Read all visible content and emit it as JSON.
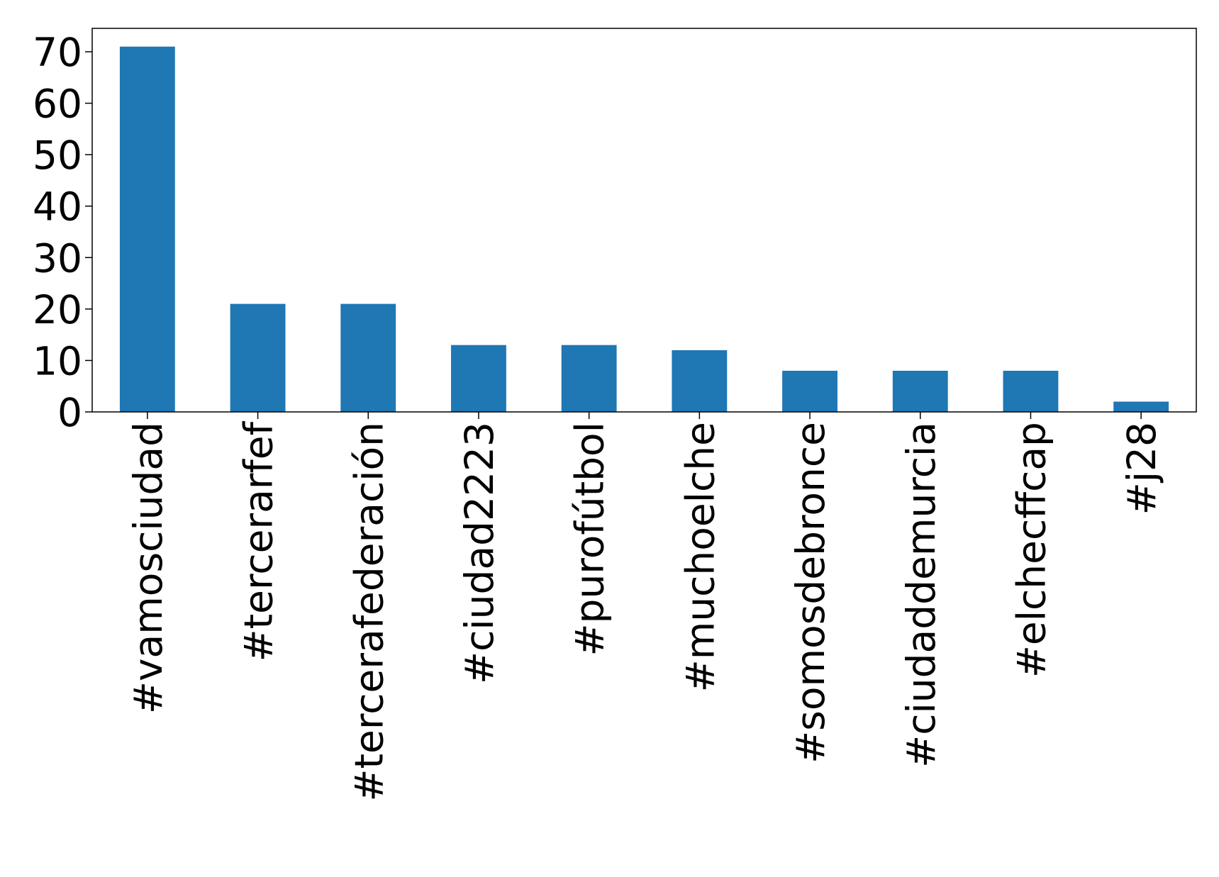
{
  "chart_data": {
    "type": "bar",
    "categories": [
      "#vamosciudad",
      "#tercerarfef",
      "#tercerafederación",
      "#ciudad2223",
      "#purofútbol",
      "#muchoelche",
      "#somosdebronce",
      "#ciudaddemurcia",
      "#elchecffcap",
      "#j28"
    ],
    "values": [
      71,
      21,
      21,
      13,
      13,
      12,
      8,
      8,
      8,
      2
    ],
    "color": "#1f77b4",
    "ylim": [
      0,
      74.55
    ],
    "yticks": [
      0,
      10,
      20,
      30,
      40,
      50,
      60,
      70
    ],
    "grid": false
  }
}
